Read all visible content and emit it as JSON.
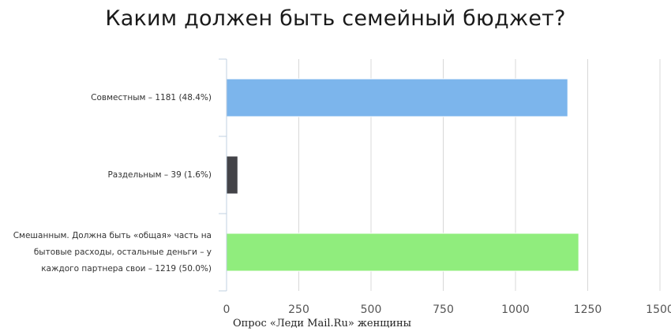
{
  "chart_data": {
    "type": "bar",
    "orientation": "horizontal",
    "title": "Каким должен быть семейный бюджет?",
    "caption": "Опрос  «Леди Mail.Ru» женщины",
    "xlim": [
      0,
      1500
    ],
    "ticks": [
      "0",
      "250",
      "500",
      "750",
      "1000",
      "1250",
      "1500"
    ],
    "grid": true,
    "categories": [
      "Совместным – 1181 (48.4%)",
      "Раздельным – 39 (1.6%)",
      "Смешанным. Должна быть «общая» часть на бытовые расходы, остальные деньги – у каждого партнера свои – 1219 (50.0%)"
    ],
    "category_lines": [
      [
        "Совместным – 1181 (48.4%)"
      ],
      [
        "Раздельным – 39 (1.6%)"
      ],
      [
        "Смешанным. Должна быть «общая» часть на",
        "бытовые расходы, остальные деньги – у",
        "каждого партнера свои – 1219 (50.0%)"
      ]
    ],
    "values": [
      1181,
      39,
      1219
    ],
    "colors": [
      "#7cb5ec",
      "#434348",
      "#90ed7d"
    ],
    "gridline_color": "#d8d8d8",
    "axis_color": "#c0d0e0"
  }
}
